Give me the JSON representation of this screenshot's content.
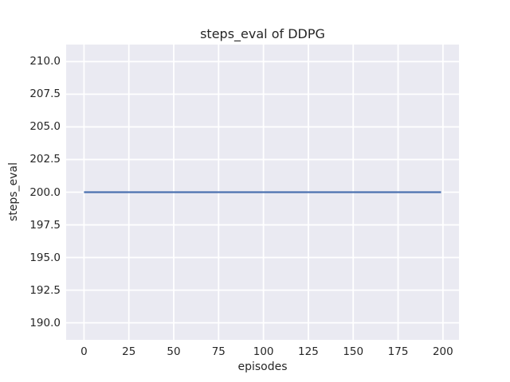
{
  "chart_data": {
    "type": "line",
    "title": "steps_eval of DDPG",
    "xlabel": "episodes",
    "ylabel": "steps_eval",
    "x_ticks": [
      {
        "v": 0,
        "label": "0"
      },
      {
        "v": 25,
        "label": "25"
      },
      {
        "v": 50,
        "label": "50"
      },
      {
        "v": 75,
        "label": "75"
      },
      {
        "v": 100,
        "label": "100"
      },
      {
        "v": 125,
        "label": "125"
      },
      {
        "v": 150,
        "label": "150"
      },
      {
        "v": 175,
        "label": "175"
      },
      {
        "v": 200,
        "label": "200"
      }
    ],
    "y_ticks": [
      {
        "v": 190.0,
        "label": "190.0"
      },
      {
        "v": 192.5,
        "label": "192.5"
      },
      {
        "v": 195.0,
        "label": "195.0"
      },
      {
        "v": 197.5,
        "label": "197.5"
      },
      {
        "v": 200.0,
        "label": "200.0"
      },
      {
        "v": 202.5,
        "label": "202.5"
      },
      {
        "v": 205.0,
        "label": "205.0"
      },
      {
        "v": 207.5,
        "label": "207.5"
      },
      {
        "v": 210.0,
        "label": "210.0"
      }
    ],
    "xlim": [
      -9.95,
      208.95
    ],
    "ylim": [
      188.7,
      211.3
    ],
    "grid": true,
    "legend": "none",
    "series": [
      {
        "name": "steps_eval",
        "x": [
          0,
          199
        ],
        "y": [
          200,
          200
        ],
        "note": "constant value 200 for all episodes 0-199",
        "color": "#4c72b0",
        "linewidth": 2.2
      }
    ],
    "colors": {
      "figure_background": "#ffffff",
      "axes_background": "#eaeaf2",
      "gridline": "#ffffff",
      "text": "#262626"
    }
  }
}
